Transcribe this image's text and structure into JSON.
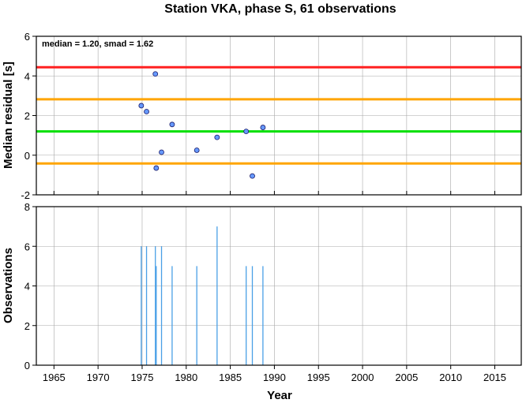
{
  "chart_data": [
    {
      "type": "scatter",
      "title": "Station VKA, phase S, 61 observations",
      "annotation": "median = 1.20, smad = 1.62",
      "ylabel": "Median residual [s]",
      "xlim": [
        1963,
        2018
      ],
      "ylim": [
        -2,
        6
      ],
      "yticks": [
        -2,
        0,
        2,
        4,
        6
      ],
      "grid": true,
      "points": [
        {
          "x": 1974.9,
          "y": 2.5
        },
        {
          "x": 1975.5,
          "y": 2.2
        },
        {
          "x": 1976.5,
          "y": 4.1
        },
        {
          "x": 1976.6,
          "y": -0.65
        },
        {
          "x": 1977.2,
          "y": 0.15
        },
        {
          "x": 1978.4,
          "y": 1.55
        },
        {
          "x": 1981.2,
          "y": 0.25
        },
        {
          "x": 1983.5,
          "y": 0.9
        },
        {
          "x": 1986.8,
          "y": 1.2
        },
        {
          "x": 1987.5,
          "y": -1.05
        },
        {
          "x": 1988.7,
          "y": 1.4
        }
      ],
      "reference_lines": [
        {
          "y": 4.44,
          "color": "#ff2020",
          "role": "median + 2 smad"
        },
        {
          "y": 2.82,
          "color": "#ffa500",
          "role": "median + 1 smad"
        },
        {
          "y": 1.2,
          "color": "#00e000",
          "role": "median"
        },
        {
          "y": -0.42,
          "color": "#ffa500",
          "role": "median - 1 smad"
        }
      ],
      "point_color": "#6699ff"
    },
    {
      "type": "bar",
      "ylabel": "Observations",
      "xlabel": "Year",
      "xlim": [
        1963,
        2018
      ],
      "ylim": [
        0,
        8
      ],
      "yticks": [
        0,
        2,
        4,
        6,
        8
      ],
      "xticks": [
        1965,
        1970,
        1975,
        1980,
        1985,
        1990,
        1995,
        2000,
        2005,
        2010,
        2015
      ],
      "grid": true,
      "bar_color": "#4aa0e6",
      "bars": [
        {
          "x": 1974.9,
          "value": 6
        },
        {
          "x": 1975.5,
          "value": 6
        },
        {
          "x": 1976.5,
          "value": 6
        },
        {
          "x": 1976.6,
          "value": 5
        },
        {
          "x": 1977.2,
          "value": 6
        },
        {
          "x": 1978.4,
          "value": 5
        },
        {
          "x": 1981.2,
          "value": 5
        },
        {
          "x": 1983.5,
          "value": 7
        },
        {
          "x": 1986.8,
          "value": 5
        },
        {
          "x": 1987.5,
          "value": 5
        },
        {
          "x": 1988.7,
          "value": 5
        }
      ]
    }
  ]
}
